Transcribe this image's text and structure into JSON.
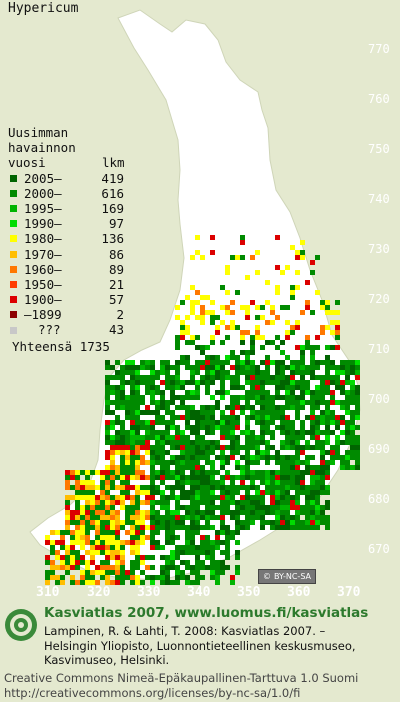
{
  "title": "Hypericum",
  "legend": {
    "header_line1": "Uusimman",
    "header_line2": "havainnon",
    "header_col1": "vuosi",
    "header_col2": "lkm",
    "rows": [
      {
        "range": "2005–",
        "count": "419",
        "color": "#006400"
      },
      {
        "range": "2000–",
        "count": "616",
        "color": "#008a00"
      },
      {
        "range": "1995–",
        "count": "169",
        "color": "#00b400"
      },
      {
        "range": "1990–",
        "count": "97",
        "color": "#00dc00"
      },
      {
        "range": "1980–",
        "count": "136",
        "color": "#ffff00"
      },
      {
        "range": "1970–",
        "count": "86",
        "color": "#ffbe00"
      },
      {
        "range": "1960–",
        "count": "89",
        "color": "#ff7800"
      },
      {
        "range": "1950–",
        "count": "21",
        "color": "#ff3c00"
      },
      {
        "range": "1900–",
        "count": "57",
        "color": "#dc0000"
      },
      {
        "range": "–1899",
        "count": "2",
        "color": "#8c0000"
      },
      {
        "range": "???",
        "count": "43",
        "color": "#c8c8c8"
      }
    ],
    "total_label": "Yhteensä",
    "total": "1735"
  },
  "y_ticks": [
    "770",
    "760",
    "750",
    "740",
    "730",
    "720",
    "710",
    "700",
    "690",
    "680",
    "670"
  ],
  "x_ticks": [
    "310",
    "320",
    "330",
    "340",
    "350",
    "360",
    "370"
  ],
  "license_badge": "BY-NC-SA",
  "footer": {
    "site": "Kasviatlas 2007, www.luomus.fi/kasviatlas",
    "cite1": "Lampinen, R. & Lahti, T. 2008: Kasviatlas 2007. –",
    "cite2": "Helsingin Yliopisto, Luonnontieteellinen keskusmuseo,",
    "cite3": "Kasvimuseo, Helsinki.",
    "license1": "Creative Commons Nimeä-Epäkaupallinen-Tarttuva 1.0 Suomi",
    "license2": "http://creativecommons.org/licenses/by-nc-sa/1.0/fi"
  },
  "colors": {
    "background": "#e4e9cf",
    "country_fill": "#ffffff",
    "grid_text": "#ffffff",
    "brand_green": "#2d7a2d"
  }
}
